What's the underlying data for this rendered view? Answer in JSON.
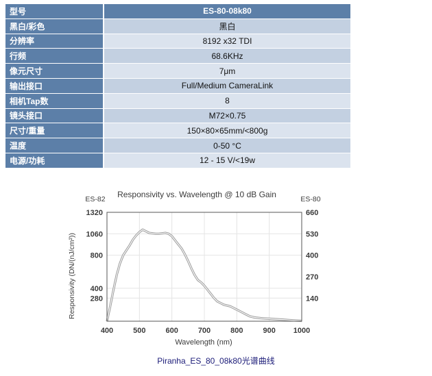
{
  "spec_table": {
    "header": {
      "label": "型号",
      "value": "ES-80-08k80"
    },
    "rows": [
      {
        "label": "黑白/彩色",
        "value": "黑白"
      },
      {
        "label": "分辨率",
        "value": "8192 x32 TDI"
      },
      {
        "label": "行频",
        "value": "68.6KHz"
      },
      {
        "label": "像元尺寸",
        "value": "7μm"
      },
      {
        "label": "输出接口",
        "value": "Full/Medium CameraLink"
      },
      {
        "label": "相机Tap数",
        "value": "8"
      },
      {
        "label": "镜头接口",
        "value": "M72×0.75"
      },
      {
        "label": "尺寸/重量",
        "value": "150×80×65mm/<800g"
      },
      {
        "label": "温度",
        "value": "0-50 °C"
      },
      {
        "label": "电源/功耗",
        "value": "12 - 15 V/<19w"
      }
    ]
  },
  "chart_data": {
    "type": "line",
    "title": "Responsivity vs. Wavelength @ 10 dB Gain",
    "xlabel": "Wavelength (nm)",
    "ylabel": "Responsivity (DN/(nJ/cm²))",
    "left_axis_name": "ES-82",
    "right_axis_name": "ES-80",
    "xlim": [
      400,
      1000
    ],
    "ylim": [
      0,
      1320
    ],
    "y2lim": [
      0,
      660
    ],
    "x_ticks": [
      400,
      500,
      600,
      700,
      800,
      900,
      1000
    ],
    "y_ticks": [
      280,
      400,
      800,
      1060,
      1320
    ],
    "y2_ticks": [
      140,
      270,
      400,
      530,
      660
    ],
    "grid": true,
    "series": [
      {
        "x": [
          400,
          410,
          420,
          430,
          440,
          450,
          460,
          470,
          480,
          490,
          500,
          510,
          520,
          530,
          540,
          550,
          560,
          570,
          580,
          590,
          600,
          610,
          620,
          630,
          640,
          650,
          660,
          670,
          680,
          690,
          700,
          710,
          720,
          730,
          740,
          750,
          760,
          770,
          780,
          790,
          800,
          810,
          820,
          830,
          840,
          850,
          860,
          870,
          880,
          890,
          900,
          920,
          940,
          960,
          980,
          1000
        ],
        "y": [
          0,
          180,
          380,
          560,
          700,
          800,
          860,
          920,
          990,
          1040,
          1080,
          1110,
          1090,
          1070,
          1065,
          1060,
          1060,
          1065,
          1070,
          1060,
          1030,
          980,
          930,
          880,
          810,
          730,
          640,
          560,
          500,
          470,
          430,
          380,
          330,
          280,
          240,
          220,
          200,
          190,
          180,
          160,
          140,
          120,
          100,
          80,
          60,
          50,
          42,
          38,
          35,
          32,
          30,
          25,
          20,
          14,
          8,
          4
        ]
      }
    ],
    "line_color": "#ffffff",
    "line_shadow_color": "#9a9a9a"
  },
  "caption": "Piranha_ES_80_08k80光谱曲线"
}
